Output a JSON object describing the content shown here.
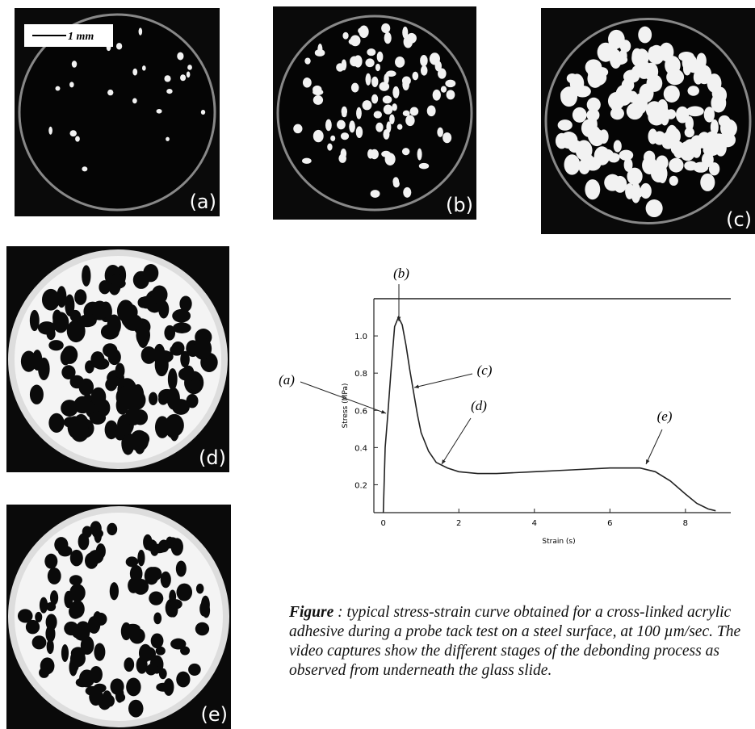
{
  "panels": [
    "(a)",
    "(b)",
    "(c)",
    "(d)",
    "(e)"
  ],
  "scale_bar": "1 mm",
  "chart_data": {
    "type": "line",
    "x_label": "Strain (s)",
    "y_label": "Stress (MPa)",
    "x": [
      0,
      0.05,
      0.12,
      0.2,
      0.3,
      0.4,
      0.5,
      0.6,
      0.7,
      0.8,
      0.9,
      1.0,
      1.2,
      1.4,
      1.7,
      2,
      2.5,
      3,
      4,
      5,
      6,
      6.8,
      7.2,
      7.6,
      8,
      8.3,
      8.6,
      8.8
    ],
    "values": [
      0.05,
      0.4,
      0.58,
      0.8,
      1.05,
      1.1,
      1.06,
      0.95,
      0.82,
      0.7,
      0.58,
      0.48,
      0.38,
      0.32,
      0.29,
      0.27,
      0.26,
      0.26,
      0.27,
      0.28,
      0.29,
      0.29,
      0.27,
      0.22,
      0.15,
      0.1,
      0.07,
      0.06
    ],
    "color": "#222",
    "xlim": [
      -0.25,
      9.2
    ],
    "ylim": [
      0.05,
      1.2
    ],
    "xticks": [
      0,
      2,
      4,
      6,
      8
    ],
    "yticks": [
      0.2,
      0.4,
      0.6,
      0.8,
      {
        "value": 1,
        "label": "1.0"
      }
    ],
    "annotations": [
      "(a)",
      "(b)",
      "(c)",
      "(d)",
      "(e)"
    ]
  },
  "caption": {
    "lead": "Figure",
    "text": "  : typical stress-strain curve obtained for a cross-linked acrylic adhesive during  a probe tack test on a steel surface, at 100 µm/sec. The video captures show the different stages of the debonding process as observed from underneath the glass slide."
  }
}
